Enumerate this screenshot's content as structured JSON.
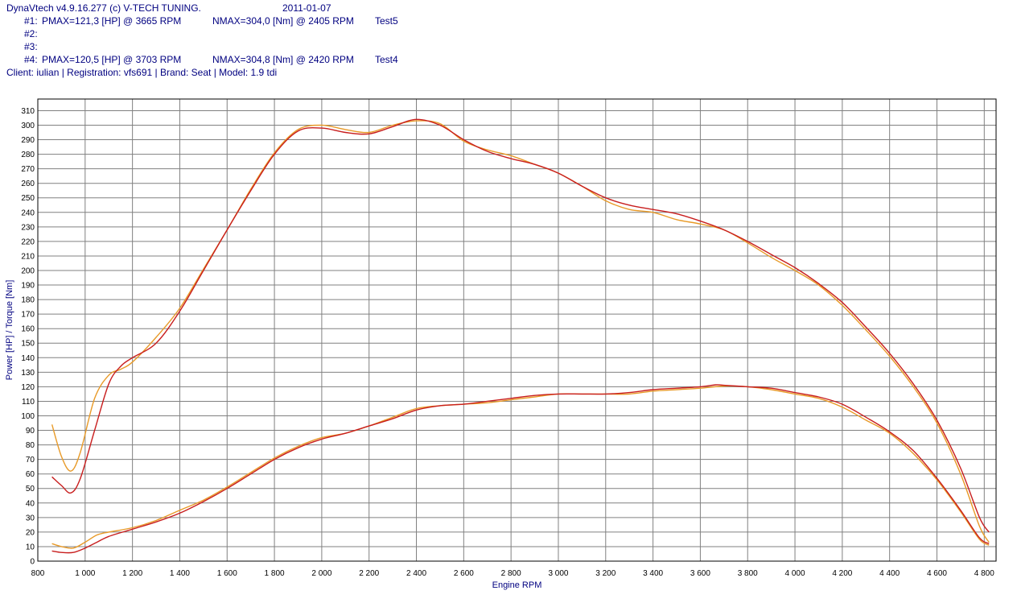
{
  "header": {
    "app_line": "DynaVtech v4.9.16.277 (c) V-TECH TUNING.",
    "date": "2011-01-07",
    "runs": [
      {
        "id": "#1:",
        "pmax": "PMAX=121,3 [HP] @ 3665 RPM",
        "nmax": "NMAX=304,0 [Nm] @ 2405 RPM",
        "name": "Test5"
      },
      {
        "id": "#2:",
        "pmax": "",
        "nmax": "",
        "name": ""
      },
      {
        "id": "#3:",
        "pmax": "",
        "nmax": "",
        "name": ""
      },
      {
        "id": "#4:",
        "pmax": "PMAX=120,5 [HP] @ 3703 RPM",
        "nmax": "NMAX=304,8 [Nm] @ 2420 RPM",
        "name": "Test4"
      }
    ],
    "client_line": "Client: iulian | Registration: vfs691 | Brand: Seat | Model: 1.9 tdi"
  },
  "colors": {
    "test5": "#c81e1e",
    "test4": "#e89a28",
    "grid": "#808080",
    "frame": "#000000",
    "text": "#000080"
  },
  "chart_data": {
    "type": "line",
    "xlabel": "Engine RPM",
    "ylabel": "Power [HP] / Torque [Nm]",
    "xlim": [
      800,
      4850
    ],
    "ylim": [
      0,
      318
    ],
    "x_ticks": [
      800,
      1000,
      1200,
      1400,
      1600,
      1800,
      2000,
      2200,
      2400,
      2600,
      2800,
      3000,
      3200,
      3400,
      3600,
      3800,
      4000,
      4200,
      4400,
      4600,
      4800
    ],
    "x_tick_labels": [
      "800",
      "1 000",
      "1 200",
      "1 400",
      "1 600",
      "1 800",
      "2 000",
      "2 200",
      "2 400",
      "2 600",
      "2 800",
      "3 000",
      "3 200",
      "3 400",
      "3 600",
      "3 800",
      "4 000",
      "4 200",
      "4 400",
      "4 600",
      "4 800"
    ],
    "y_ticks": [
      0,
      10,
      20,
      30,
      40,
      50,
      60,
      70,
      80,
      90,
      100,
      110,
      120,
      130,
      140,
      150,
      160,
      170,
      180,
      190,
      200,
      210,
      220,
      230,
      240,
      250,
      260,
      270,
      280,
      290,
      300,
      310
    ],
    "grid": true,
    "series": [
      {
        "run": "Test5",
        "quantity": "torque",
        "color": "#c81e1e",
        "points": [
          [
            860,
            58
          ],
          [
            900,
            52
          ],
          [
            940,
            47
          ],
          [
            980,
            57
          ],
          [
            1040,
            90
          ],
          [
            1100,
            122
          ],
          [
            1150,
            134
          ],
          [
            1200,
            140
          ],
          [
            1300,
            150
          ],
          [
            1400,
            172
          ],
          [
            1500,
            200
          ],
          [
            1600,
            228
          ],
          [
            1700,
            255
          ],
          [
            1800,
            280
          ],
          [
            1900,
            296
          ],
          [
            2000,
            298
          ],
          [
            2100,
            295
          ],
          [
            2200,
            294
          ],
          [
            2300,
            299
          ],
          [
            2400,
            304
          ],
          [
            2500,
            300
          ],
          [
            2600,
            290
          ],
          [
            2700,
            282
          ],
          [
            2800,
            277
          ],
          [
            2900,
            273
          ],
          [
            3000,
            267
          ],
          [
            3100,
            258
          ],
          [
            3200,
            250
          ],
          [
            3300,
            245
          ],
          [
            3400,
            242
          ],
          [
            3500,
            239
          ],
          [
            3600,
            234
          ],
          [
            3700,
            228
          ],
          [
            3800,
            220
          ],
          [
            3900,
            211
          ],
          [
            4000,
            202
          ],
          [
            4100,
            191
          ],
          [
            4200,
            178
          ],
          [
            4300,
            161
          ],
          [
            4400,
            143
          ],
          [
            4500,
            122
          ],
          [
            4600,
            97
          ],
          [
            4700,
            64
          ],
          [
            4780,
            30
          ],
          [
            4820,
            20
          ]
        ]
      },
      {
        "run": "Test4",
        "quantity": "torque",
        "color": "#e89a28",
        "points": [
          [
            860,
            94
          ],
          [
            900,
            72
          ],
          [
            940,
            62
          ],
          [
            980,
            75
          ],
          [
            1040,
            112
          ],
          [
            1100,
            128
          ],
          [
            1150,
            132
          ],
          [
            1200,
            137
          ],
          [
            1300,
            154
          ],
          [
            1400,
            174
          ],
          [
            1500,
            201
          ],
          [
            1600,
            228
          ],
          [
            1700,
            256
          ],
          [
            1800,
            281
          ],
          [
            1900,
            297
          ],
          [
            2000,
            300
          ],
          [
            2100,
            297
          ],
          [
            2200,
            295
          ],
          [
            2300,
            300
          ],
          [
            2400,
            303
          ],
          [
            2500,
            301
          ],
          [
            2600,
            289
          ],
          [
            2700,
            283
          ],
          [
            2800,
            279
          ],
          [
            2900,
            273
          ],
          [
            3000,
            267
          ],
          [
            3100,
            258
          ],
          [
            3200,
            248
          ],
          [
            3300,
            242
          ],
          [
            3400,
            240
          ],
          [
            3500,
            235
          ],
          [
            3600,
            232
          ],
          [
            3700,
            228
          ],
          [
            3800,
            219
          ],
          [
            3900,
            209
          ],
          [
            4000,
            200
          ],
          [
            4100,
            190
          ],
          [
            4200,
            176
          ],
          [
            4300,
            159
          ],
          [
            4400,
            141
          ],
          [
            4500,
            120
          ],
          [
            4600,
            95
          ],
          [
            4700,
            60
          ],
          [
            4780,
            24
          ],
          [
            4820,
            13
          ]
        ]
      },
      {
        "run": "Test5",
        "quantity": "power",
        "color": "#c81e1e",
        "points": [
          [
            860,
            7
          ],
          [
            900,
            6
          ],
          [
            950,
            6
          ],
          [
            1000,
            9
          ],
          [
            1050,
            13
          ],
          [
            1100,
            17
          ],
          [
            1200,
            22
          ],
          [
            1300,
            27
          ],
          [
            1400,
            33
          ],
          [
            1500,
            41
          ],
          [
            1600,
            50
          ],
          [
            1700,
            60
          ],
          [
            1800,
            70
          ],
          [
            1900,
            78
          ],
          [
            2000,
            84
          ],
          [
            2100,
            88
          ],
          [
            2200,
            93
          ],
          [
            2300,
            98
          ],
          [
            2400,
            104
          ],
          [
            2500,
            107
          ],
          [
            2600,
            108
          ],
          [
            2700,
            110
          ],
          [
            2800,
            112
          ],
          [
            2900,
            114
          ],
          [
            3000,
            115
          ],
          [
            3100,
            115
          ],
          [
            3200,
            115
          ],
          [
            3300,
            116
          ],
          [
            3400,
            118
          ],
          [
            3500,
            119
          ],
          [
            3600,
            120
          ],
          [
            3665,
            121.3
          ],
          [
            3700,
            121
          ],
          [
            3800,
            120
          ],
          [
            3900,
            119
          ],
          [
            4000,
            116
          ],
          [
            4100,
            113
          ],
          [
            4200,
            108
          ],
          [
            4300,
            99
          ],
          [
            4400,
            89
          ],
          [
            4500,
            76
          ],
          [
            4600,
            57
          ],
          [
            4700,
            35
          ],
          [
            4780,
            16
          ],
          [
            4820,
            12
          ]
        ]
      },
      {
        "run": "Test4",
        "quantity": "power",
        "color": "#e89a28",
        "points": [
          [
            860,
            12
          ],
          [
            900,
            10
          ],
          [
            950,
            9
          ],
          [
            1000,
            13
          ],
          [
            1050,
            18
          ],
          [
            1100,
            20
          ],
          [
            1200,
            23
          ],
          [
            1300,
            28
          ],
          [
            1400,
            35
          ],
          [
            1500,
            42
          ],
          [
            1600,
            51
          ],
          [
            1700,
            61
          ],
          [
            1800,
            71
          ],
          [
            1900,
            79
          ],
          [
            2000,
            85
          ],
          [
            2100,
            88
          ],
          [
            2200,
            93
          ],
          [
            2300,
            99
          ],
          [
            2400,
            105
          ],
          [
            2500,
            107
          ],
          [
            2600,
            108
          ],
          [
            2700,
            109
          ],
          [
            2800,
            111
          ],
          [
            2900,
            113
          ],
          [
            3000,
            115
          ],
          [
            3100,
            115
          ],
          [
            3200,
            115
          ],
          [
            3300,
            115
          ],
          [
            3400,
            117
          ],
          [
            3500,
            118
          ],
          [
            3600,
            119
          ],
          [
            3703,
            120.5
          ],
          [
            3800,
            120
          ],
          [
            3900,
            118
          ],
          [
            4000,
            115
          ],
          [
            4100,
            112
          ],
          [
            4200,
            106
          ],
          [
            4300,
            97
          ],
          [
            4400,
            88
          ],
          [
            4500,
            74
          ],
          [
            4600,
            56
          ],
          [
            4700,
            34
          ],
          [
            4780,
            15
          ],
          [
            4820,
            11
          ]
        ]
      }
    ]
  }
}
